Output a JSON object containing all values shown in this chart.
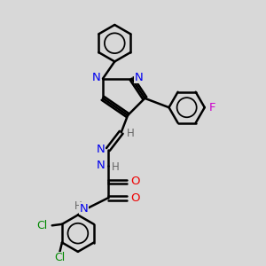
{
  "bg_color": "#d8d8d8",
  "bond_color": "#000000",
  "bond_width": 1.8,
  "atom_colors": {
    "N": "#0000ee",
    "O": "#ee0000",
    "F": "#cc00cc",
    "Cl": "#008800",
    "H": "#666666",
    "C": "#000000"
  },
  "font_size": 8.5,
  "fig_size": [
    3.0,
    3.0
  ],
  "dpi": 100
}
